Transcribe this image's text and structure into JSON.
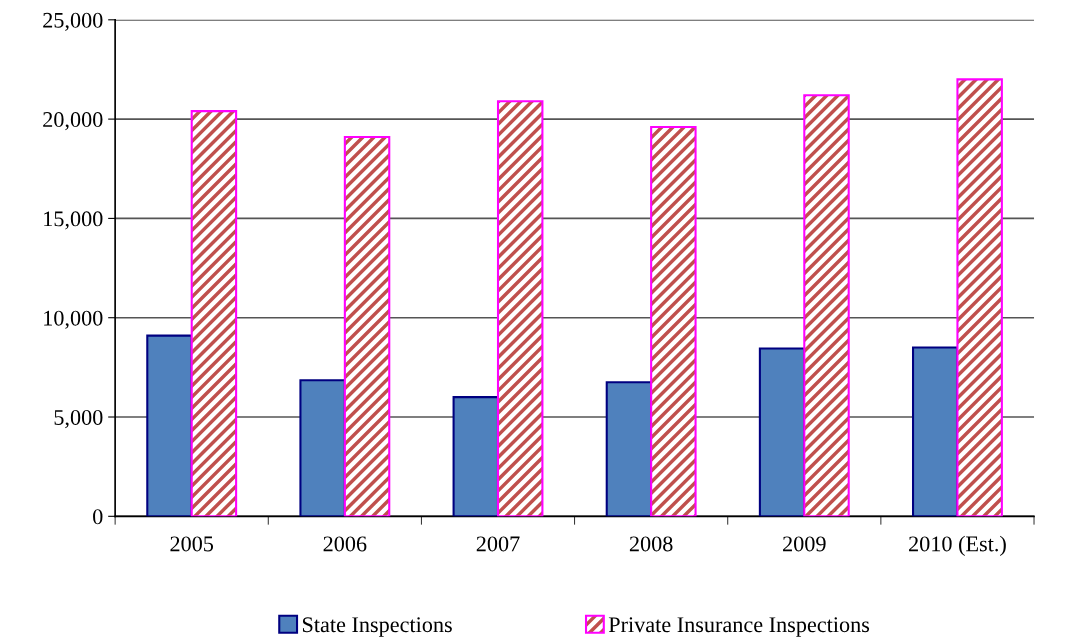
{
  "chart_data": {
    "type": "bar",
    "categories": [
      "2005",
      "2006",
      "2007",
      "2008",
      "2009",
      "2010 (Est.)"
    ],
    "series": [
      {
        "name": "State Inspections",
        "color": "#4f81bd",
        "values": [
          9100,
          6850,
          6000,
          6750,
          8450,
          8500
        ]
      },
      {
        "name": "Private Insurance Inspections",
        "color": "#ff00ff",
        "values": [
          20400,
          19100,
          20900,
          19600,
          21200,
          22000
        ]
      }
    ],
    "ylim": [
      0,
      25000
    ],
    "yticks": [
      {
        "value": 0,
        "label": "0"
      },
      {
        "value": 5000,
        "label": "5,000"
      },
      {
        "value": 10000,
        "label": "10,000"
      },
      {
        "value": 15000,
        "label": "15,000"
      },
      {
        "value": 20000,
        "label": "20,000"
      },
      {
        "value": 25000,
        "label": "25,000"
      }
    ],
    "grid": "y",
    "legend": "bottom"
  }
}
